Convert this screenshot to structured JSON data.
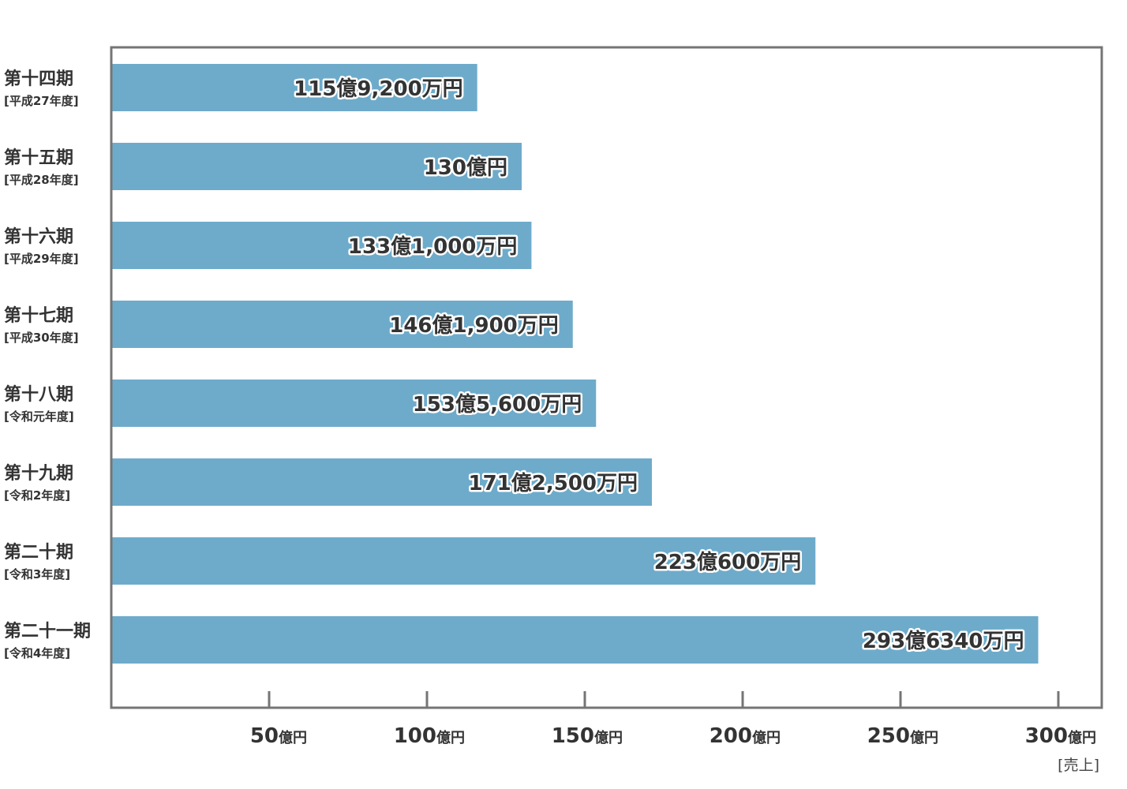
{
  "colors": {
    "bar": "#6eabcb",
    "axis": "#757575",
    "text": "#333333"
  },
  "chart_data": {
    "type": "bar",
    "orientation": "horizontal",
    "categories": [
      {
        "period": "第十四期",
        "year": "[平成27年度]"
      },
      {
        "period": "第十五期",
        "year": "[平成28年度]"
      },
      {
        "period": "第十六期",
        "year": "[平成29年度]"
      },
      {
        "period": "第十七期",
        "year": "[平成30年度]"
      },
      {
        "period": "第十八期",
        "year": "[令和元年度]"
      },
      {
        "period": "第十九期",
        "year": "[令和2年度]"
      },
      {
        "period": "第二十期",
        "year": "[令和3年度]"
      },
      {
        "period": "第二十一期",
        "year": "[令和4年度]"
      }
    ],
    "values": [
      115.92,
      130,
      133.1,
      146.19,
      153.56,
      171.25,
      223.06,
      293.634
    ],
    "value_labels": [
      "115億9,200万円",
      "130億円",
      "133億1,000万円",
      "146億1,900万円",
      "153億5,600万円",
      "171億2,500万円",
      "223億600万円",
      "293億6340万円"
    ],
    "xlim": [
      0,
      313.5
    ],
    "xticks": [
      {
        "value": 50,
        "num": "50",
        "unit": "億円"
      },
      {
        "value": 100,
        "num": "100",
        "unit": "億円"
      },
      {
        "value": 150,
        "num": "150",
        "unit": "億円"
      },
      {
        "value": 200,
        "num": "200",
        "unit": "億円"
      },
      {
        "value": 250,
        "num": "250",
        "unit": "億円"
      },
      {
        "value": 300,
        "num": "300",
        "unit": "億円"
      }
    ],
    "xlabel": "[売上]",
    "ylabel": "",
    "title": "",
    "grid": false,
    "legend": "none"
  }
}
